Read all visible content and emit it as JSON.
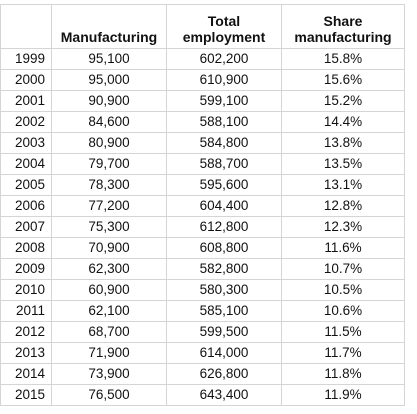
{
  "table": {
    "headers": {
      "year": "",
      "manufacturing": "Manufacturing",
      "total_employment_line1": "Total",
      "total_employment_line2": "employment",
      "share_line1": "Share",
      "share_line2": "manufacturing"
    },
    "rows": [
      {
        "year": "1999",
        "manufacturing": "95,100",
        "total_employment": "602,200",
        "share": "15.8%"
      },
      {
        "year": "2000",
        "manufacturing": "95,000",
        "total_employment": "610,900",
        "share": "15.6%"
      },
      {
        "year": "2001",
        "manufacturing": "90,900",
        "total_employment": "599,100",
        "share": "15.2%"
      },
      {
        "year": "2002",
        "manufacturing": "84,600",
        "total_employment": "588,100",
        "share": "14.4%"
      },
      {
        "year": "2003",
        "manufacturing": "80,900",
        "total_employment": "584,800",
        "share": "13.8%"
      },
      {
        "year": "2004",
        "manufacturing": "79,700",
        "total_employment": "588,700",
        "share": "13.5%"
      },
      {
        "year": "2005",
        "manufacturing": "78,300",
        "total_employment": "595,600",
        "share": "13.1%"
      },
      {
        "year": "2006",
        "manufacturing": "77,200",
        "total_employment": "604,400",
        "share": "12.8%"
      },
      {
        "year": "2007",
        "manufacturing": "75,300",
        "total_employment": "612,800",
        "share": "12.3%"
      },
      {
        "year": "2008",
        "manufacturing": "70,900",
        "total_employment": "608,800",
        "share": "11.6%"
      },
      {
        "year": "2009",
        "manufacturing": "62,300",
        "total_employment": "582,800",
        "share": "10.7%"
      },
      {
        "year": "2010",
        "manufacturing": "60,900",
        "total_employment": "580,300",
        "share": "10.5%"
      },
      {
        "year": "2011",
        "manufacturing": "62,100",
        "total_employment": "585,100",
        "share": "10.6%"
      },
      {
        "year": "2012",
        "manufacturing": "68,700",
        "total_employment": "599,500",
        "share": "11.5%"
      },
      {
        "year": "2013",
        "manufacturing": "71,900",
        "total_employment": "614,000",
        "share": "11.7%"
      },
      {
        "year": "2014",
        "manufacturing": "73,900",
        "total_employment": "626,800",
        "share": "11.8%"
      },
      {
        "year": "2015",
        "manufacturing": "76,500",
        "total_employment": "643,400",
        "share": "11.9%"
      }
    ]
  }
}
